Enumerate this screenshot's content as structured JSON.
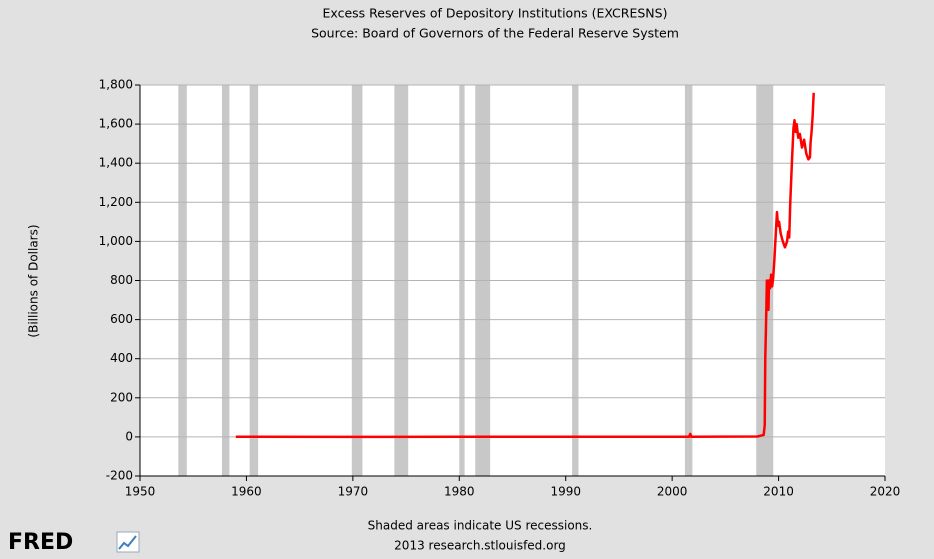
{
  "chart_data": {
    "type": "line",
    "title": "Excess Reserves of Depository Institutions (EXCRESNS)",
    "subtitle": "Source: Board of Governors of the Federal Reserve System",
    "y_label": "(Billions of Dollars)",
    "note": "Shaded areas indicate US recessions.",
    "source": "2013 research.stlouisfed.org",
    "logo": "FRED",
    "xlim": [
      1950,
      2020
    ],
    "xticks": [
      1950,
      1960,
      1970,
      1980,
      1990,
      2000,
      2010,
      2020
    ],
    "ylim": [
      -200,
      1800
    ],
    "yticks": [
      -200,
      0,
      200,
      400,
      600,
      800,
      {
        "value": 1000,
        "label": "1,000"
      },
      {
        "value": 1200,
        "label": "1,200"
      },
      {
        "value": 1400,
        "label": "1,400"
      },
      {
        "value": 1600,
        "label": "1,600"
      },
      {
        "value": 1800,
        "label": "1,800"
      }
    ],
    "grid": true,
    "recession_color": "#c8c8c8",
    "recessions": [
      [
        1953.6,
        1954.4
      ],
      [
        1957.7,
        1958.4
      ],
      [
        1960.3,
        1961.1
      ],
      [
        1969.9,
        1970.9
      ],
      [
        1973.9,
        1975.2
      ],
      [
        1980.0,
        1980.5
      ],
      [
        1981.5,
        1982.9
      ],
      [
        1990.6,
        1991.2
      ],
      [
        2001.2,
        2001.9
      ],
      [
        2007.9,
        2009.5
      ]
    ],
    "series": [
      {
        "name": "EXCRESNS",
        "color": "#ff0000",
        "x": [
          1959.0,
          1970.0,
          1980.0,
          1990.0,
          2001.6,
          2001.7,
          2001.8,
          2008.0,
          2008.6,
          2008.7,
          2008.75,
          2008.85,
          2008.9,
          2009.0,
          2009.05,
          2009.1,
          2009.2,
          2009.3,
          2009.4,
          2009.5,
          2009.6,
          2009.75,
          2009.85,
          2009.95,
          2010.05,
          2010.2,
          2010.4,
          2010.6,
          2010.8,
          2010.9,
          2011.0,
          2011.1,
          2011.25,
          2011.4,
          2011.5,
          2011.6,
          2011.7,
          2011.85,
          2012.0,
          2012.2,
          2012.4,
          2012.6,
          2012.8,
          2012.95,
          2013.0,
          2013.1,
          2013.2,
          2013.3
        ],
        "values": [
          0.5,
          0.3,
          0.5,
          1,
          1,
          15,
          1,
          2,
          10,
          60,
          400,
          650,
          800,
          750,
          650,
          800,
          760,
          830,
          770,
          820,
          900,
          1050,
          1150,
          1080,
          1100,
          1040,
          1000,
          970,
          1000,
          1050,
          1020,
          1200,
          1400,
          1580,
          1620,
          1560,
          1600,
          1530,
          1550,
          1480,
          1520,
          1450,
          1420,
          1430,
          1500,
          1560,
          1640,
          1760
        ]
      }
    ]
  }
}
